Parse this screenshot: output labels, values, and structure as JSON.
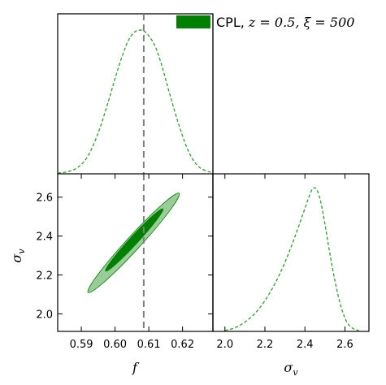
{
  "legend": {
    "label_prefix": "CPL, ",
    "label_math": "z = 0.5, ξ = 500",
    "swatch_color": "#008000",
    "placement": "top-right"
  },
  "chart_data": [
    {
      "type": "line",
      "panel": "marginal-f",
      "xlim": [
        0.583,
        0.629
      ],
      "style": "dashed",
      "color": "#2ca02c",
      "series": [
        {
          "x": [
            0.583,
            0.586,
            0.589,
            0.592,
            0.595,
            0.598,
            0.6,
            0.602,
            0.604,
            0.606,
            0.608,
            0.6085,
            0.61,
            0.612,
            0.614,
            0.616,
            0.619,
            0.622,
            0.625,
            0.629
          ],
          "y": [
            0.0,
            0.01,
            0.04,
            0.12,
            0.28,
            0.5,
            0.66,
            0.81,
            0.93,
            0.99,
            1.0,
            0.995,
            0.96,
            0.88,
            0.74,
            0.57,
            0.33,
            0.14,
            0.04,
            0.0
          ]
        }
      ],
      "reference_line": {
        "x": 0.6085,
        "style": "dashed",
        "color": "#808080"
      }
    },
    {
      "type": "scatter",
      "panel": "joint-f-sigma_v",
      "xlabel": "f",
      "ylabel": "σ_v",
      "xlim": [
        0.583,
        0.629
      ],
      "ylim": [
        1.91,
        2.72
      ],
      "xticks": [
        "0.59",
        "0.60",
        "0.61",
        "0.62"
      ],
      "xtick_values": [
        0.59,
        0.6,
        0.61,
        0.62
      ],
      "yticks": [
        "2.0",
        "2.2",
        "2.4",
        "2.6"
      ],
      "ytick_values": [
        2.0,
        2.2,
        2.4,
        2.6
      ],
      "contours": [
        {
          "level": "95%",
          "color": "#008000",
          "opacity": 0.4,
          "center": [
            0.6055,
            2.365
          ],
          "corner_a": [
            0.592,
            2.11
          ],
          "corner_b": [
            0.619,
            2.62
          ],
          "half_width_f": 0.0028
        },
        {
          "level": "68%",
          "color": "#008000",
          "opacity": 1.0,
          "center": [
            0.6057,
            2.38
          ],
          "corner_a": [
            0.597,
            2.22
          ],
          "corner_b": [
            0.614,
            2.54
          ],
          "half_width_f": 0.00165
        }
      ],
      "reference_line": {
        "x": 0.6085,
        "style": "dashed",
        "color": "#808080"
      }
    },
    {
      "type": "line",
      "panel": "marginal-sigma_v",
      "xlabel": "σ_v",
      "xlim": [
        1.94,
        2.72
      ],
      "xticks": [
        "2.0",
        "2.2",
        "2.4",
        "2.6"
      ],
      "xtick_values": [
        2.0,
        2.2,
        2.4,
        2.6
      ],
      "style": "dashed",
      "color": "#2ca02c",
      "series": [
        {
          "x": [
            2.0,
            2.05,
            2.1,
            2.15,
            2.2,
            2.25,
            2.3,
            2.35,
            2.4,
            2.42,
            2.44,
            2.46,
            2.48,
            2.5,
            2.52,
            2.55,
            2.58,
            2.61,
            2.64,
            2.67
          ],
          "y": [
            0.0,
            0.02,
            0.06,
            0.12,
            0.21,
            0.33,
            0.48,
            0.66,
            0.86,
            0.94,
            1.0,
            0.99,
            0.9,
            0.75,
            0.58,
            0.35,
            0.17,
            0.06,
            0.015,
            0.0
          ]
        }
      ]
    }
  ]
}
